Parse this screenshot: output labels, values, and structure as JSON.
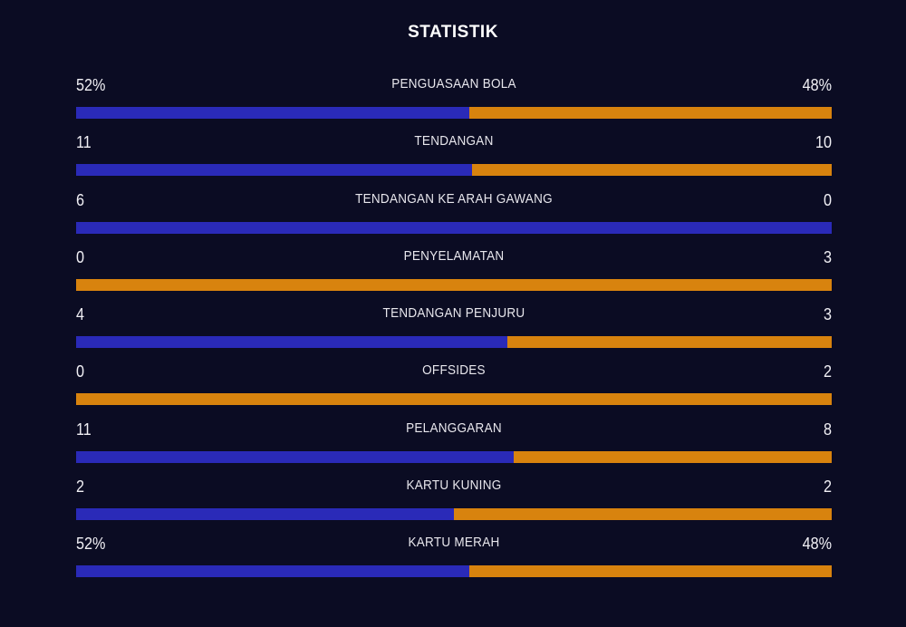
{
  "title": "STATISTIK",
  "colors": {
    "background": "#0b0c23",
    "home_bar": "#2a2ab8",
    "away_bar": "#d8830e",
    "title_text": "#ffffff",
    "label_text": "#e8e7ed",
    "value_text": "#f1f0f5"
  },
  "stats": [
    {
      "label": "PENGUASAAN BOLA",
      "home": "52%",
      "away": "48%",
      "home_pct": 52.0
    },
    {
      "label": "TENDANGAN",
      "home": "11",
      "away": "10",
      "home_pct": 52.4
    },
    {
      "label": "TENDANGAN KE ARAH GAWANG",
      "home": "6",
      "away": "0",
      "home_pct": 100.0
    },
    {
      "label": "PENYELAMATAN",
      "home": "0",
      "away": "3",
      "home_pct": 0.0
    },
    {
      "label": "TENDANGAN PENJURU",
      "home": "4",
      "away": "3",
      "home_pct": 57.1
    },
    {
      "label": "OFFSIDES",
      "home": "0",
      "away": "2",
      "home_pct": 0.0
    },
    {
      "label": "PELANGGARAN",
      "home": "11",
      "away": "8",
      "home_pct": 57.9
    },
    {
      "label": "KARTU KUNING",
      "home": "2",
      "away": "2",
      "home_pct": 50.0
    },
    {
      "label": "KARTU MERAH",
      "home": "52%",
      "away": "48%",
      "home_pct": 52.0
    }
  ],
  "chart_data": {
    "type": "bar",
    "title": "STATISTIK",
    "orientation": "horizontal-split",
    "categories": [
      "PENGUASAAN BOLA",
      "TENDANGAN",
      "TENDANGAN KE ARAH GAWANG",
      "PENYELAMATAN",
      "TENDANGAN PENJURU",
      "OFFSIDES",
      "PELANGGARAN",
      "KARTU KUNING",
      "KARTU MERAH"
    ],
    "series": [
      {
        "name": "home",
        "color": "#2a2ab8",
        "values": [
          52,
          11,
          6,
          0,
          4,
          0,
          11,
          2,
          52
        ]
      },
      {
        "name": "away",
        "color": "#d8830e",
        "values": [
          48,
          10,
          0,
          3,
          3,
          2,
          8,
          2,
          48
        ]
      }
    ],
    "value_units": [
      "%",
      "",
      "",
      "",
      "",
      "",
      "",
      "",
      "%"
    ],
    "legend_position": "none",
    "grid": false
  }
}
